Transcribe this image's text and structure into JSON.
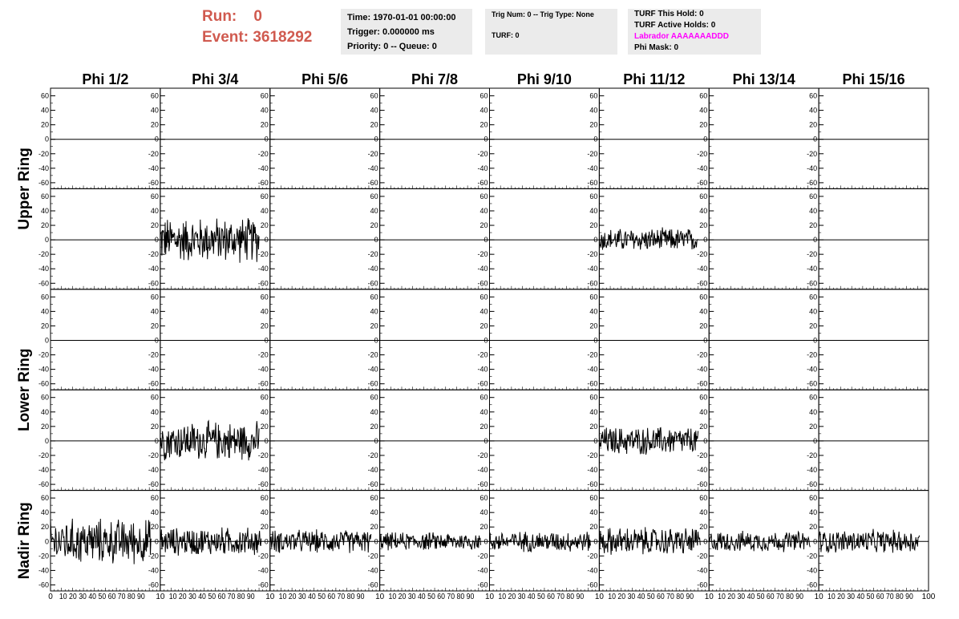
{
  "header": {
    "run_label": "Run:",
    "run_value": "0",
    "event_label": "Event:",
    "event_value": "3618292"
  },
  "info_time": {
    "time": "Time: 1970-01-01 00:00:00",
    "trigger": "Trigger: 0.000000 ms",
    "priority": "Priority: 0 -- Queue: 0"
  },
  "info_trig": {
    "trig": "Trig Num: 0 -- Trig Type: None",
    "turf": "TURF: 0"
  },
  "info_turf": {
    "hold": "TURF This Hold: 0",
    "active": "TURF Active Holds: 0",
    "labrador": "Labrador AAAAAAADDD",
    "phimask": "Phi Mask: 0"
  },
  "colors": {
    "run_text": "#d05a4f",
    "labrador": "#ff00ff",
    "panel_bg": "#ebebeb",
    "trace": "#000000"
  },
  "chart_data": {
    "type": "line",
    "columns": [
      "Phi 1/2",
      "Phi 3/4",
      "Phi 5/6",
      "Phi 7/8",
      "Phi 9/10",
      "Phi 11/12",
      "Phi 13/14",
      "Phi 15/16"
    ],
    "ring_labels": [
      "Upper Ring",
      "Lower Ring",
      "Nadir Ring"
    ],
    "rows": 5,
    "row_ring_span": [
      [
        0,
        1
      ],
      [
        2,
        3
      ],
      [
        4,
        4
      ]
    ],
    "ylim": [
      -65,
      65
    ],
    "xlim": [
      0,
      100
    ],
    "ytick_labels": [
      "60",
      "40",
      "20",
      "0",
      "-20",
      "-40",
      "-60"
    ],
    "x_axis_first_label": "0",
    "x_axis_repeat_label": "10 20 30 40 50 60 70 80 90",
    "x_axis_last_label": "100",
    "x_axis_col_end": [
      "10",
      "10",
      "10",
      "10",
      "10",
      "10",
      "10",
      "10"
    ],
    "series": [
      {
        "row": 1,
        "col": 1,
        "x_range": [
          0,
          90
        ],
        "amplitude": 35
      },
      {
        "row": 1,
        "col": 5,
        "x_range": [
          0,
          90
        ],
        "amplitude": 18
      },
      {
        "row": 3,
        "col": 1,
        "x_range": [
          0,
          90
        ],
        "amplitude": 30
      },
      {
        "row": 3,
        "col": 5,
        "x_range": [
          0,
          90
        ],
        "amplitude": 22
      },
      {
        "row": 4,
        "col": 0,
        "x_range": [
          0,
          92
        ],
        "amplitude": 35
      },
      {
        "row": 4,
        "col": 1,
        "x_range": [
          0,
          92
        ],
        "amplitude": 22
      },
      {
        "row": 4,
        "col": 2,
        "x_range": [
          0,
          92
        ],
        "amplitude": 18
      },
      {
        "row": 4,
        "col": 3,
        "x_range": [
          0,
          92
        ],
        "amplitude": 14
      },
      {
        "row": 4,
        "col": 4,
        "x_range": [
          0,
          92
        ],
        "amplitude": 16
      },
      {
        "row": 4,
        "col": 5,
        "x_range": [
          0,
          92
        ],
        "amplitude": 22
      },
      {
        "row": 4,
        "col": 6,
        "x_range": [
          0,
          92
        ],
        "amplitude": 16
      },
      {
        "row": 4,
        "col": 7,
        "x_range": [
          0,
          92
        ],
        "amplitude": 18
      }
    ]
  }
}
